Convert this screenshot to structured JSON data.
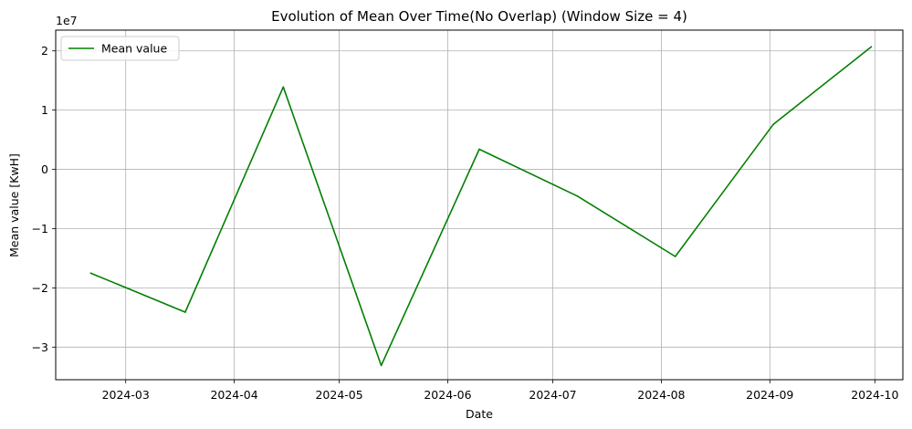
{
  "chart_data": {
    "type": "line",
    "title": "Evolution of Mean Over Time(No Overlap) (Window Size = 4)",
    "xlabel": "Date",
    "ylabel": "Mean value [KwH]",
    "y_offset_label": "1e7",
    "grid": true,
    "legend_position": "top-left",
    "xlim": [
      "2024-02-10",
      "2024-10-09"
    ],
    "ylim": [
      -3.55,
      2.35
    ],
    "x_ticks": [
      {
        "value": "2024-03-01",
        "label": "2024-03"
      },
      {
        "value": "2024-04-01",
        "label": "2024-04"
      },
      {
        "value": "2024-05-01",
        "label": "2024-05"
      },
      {
        "value": "2024-06-01",
        "label": "2024-06"
      },
      {
        "value": "2024-07-01",
        "label": "2024-07"
      },
      {
        "value": "2024-08-01",
        "label": "2024-08"
      },
      {
        "value": "2024-09-01",
        "label": "2024-09"
      },
      {
        "value": "2024-10-01",
        "label": "2024-10"
      }
    ],
    "y_ticks": [
      {
        "value": 2,
        "label": "2"
      },
      {
        "value": 1,
        "label": "1"
      },
      {
        "value": 0,
        "label": "0"
      },
      {
        "value": -1,
        "label": "−1"
      },
      {
        "value": -2,
        "label": "−2"
      },
      {
        "value": -3,
        "label": "−3"
      }
    ],
    "series": [
      {
        "name": "Mean value",
        "color": "#008000",
        "points": [
          {
            "x": "2024-02-20",
            "y": -1.75
          },
          {
            "x": "2024-03-18",
            "y": -2.41
          },
          {
            "x": "2024-04-15",
            "y": 1.39
          },
          {
            "x": "2024-05-13",
            "y": -3.31
          },
          {
            "x": "2024-06-10",
            "y": 0.34
          },
          {
            "x": "2024-07-08",
            "y": -0.45
          },
          {
            "x": "2024-08-05",
            "y": -1.47
          },
          {
            "x": "2024-09-02",
            "y": 0.76
          },
          {
            "x": "2024-09-30",
            "y": 2.07
          }
        ]
      }
    ]
  }
}
